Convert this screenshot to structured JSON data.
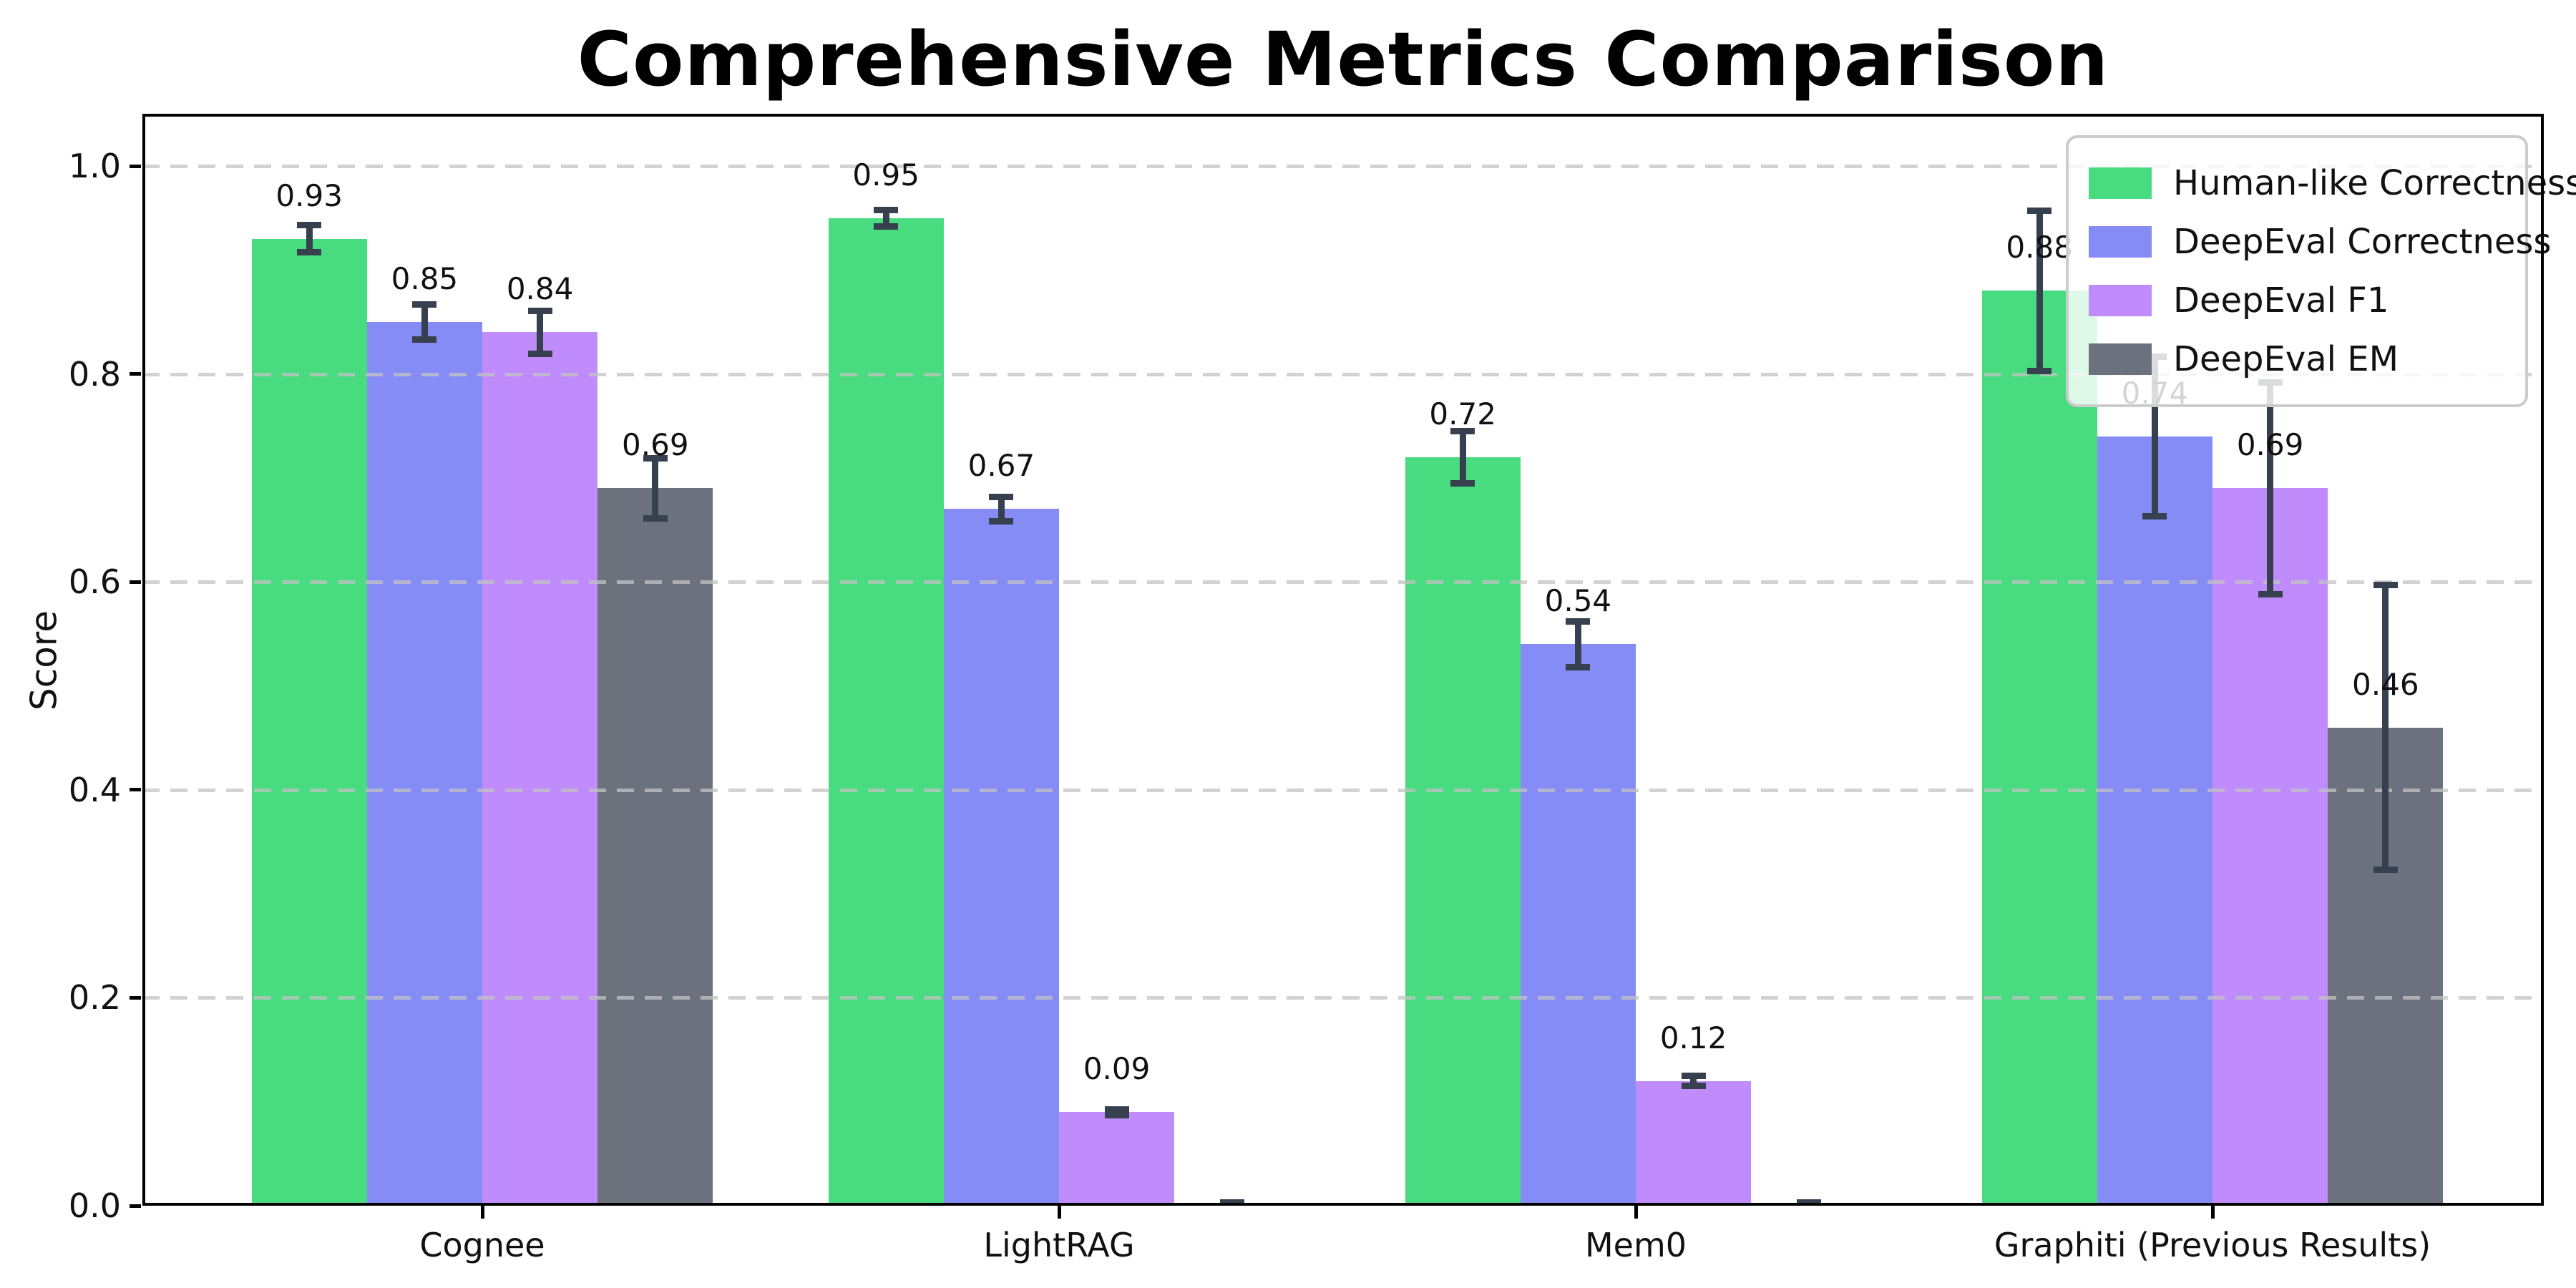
{
  "chart_data": {
    "type": "bar",
    "title": "Comprehensive Metrics Comparison",
    "xlabel": "",
    "ylabel": "Score",
    "categories": [
      "Cognee",
      "LightRAG",
      "Mem0",
      "Graphiti (Previous Results)"
    ],
    "series": [
      {
        "name": "Human-like Correctness",
        "color": "#49db80",
        "values": [
          0.93,
          0.95,
          0.72,
          0.88
        ],
        "errors": [
          0.016,
          0.011,
          0.028,
          0.08
        ],
        "value_labels": [
          "0.93",
          "0.95",
          "0.72",
          "0.88"
        ]
      },
      {
        "name": "DeepEval Correctness",
        "color": "#858cf6",
        "values": [
          0.85,
          0.67,
          0.54,
          0.74
        ],
        "errors": [
          0.02,
          0.015,
          0.025,
          0.08
        ],
        "value_labels": [
          "0.85",
          "0.67",
          "0.54",
          "0.74"
        ]
      },
      {
        "name": "DeepEval F1",
        "color": "#c08bfa",
        "values": [
          0.84,
          0.09,
          0.12,
          0.69
        ],
        "errors": [
          0.024,
          0.006,
          0.008,
          0.105
        ],
        "value_labels": [
          "0.84",
          "0.09",
          "0.12",
          "0.69"
        ]
      },
      {
        "name": "DeepEval EM",
        "color": "#6b727e",
        "values": [
          0.69,
          0.0,
          0.0,
          0.46
        ],
        "errors": [
          0.032,
          0.003,
          0.002,
          0.14
        ],
        "value_labels": [
          "0.69",
          "",
          "",
          "0.46"
        ]
      }
    ],
    "yticks": [
      "0.0",
      "0.2",
      "0.4",
      "0.6",
      "0.8",
      "1.0"
    ],
    "ylim": [
      0.0,
      1.05
    ],
    "grid": {
      "axis": "y",
      "style": "dashed",
      "color": "#c3c3c3"
    },
    "legend_position": "upper right",
    "errorbar_color": "#36404f",
    "spine_color": "#000000"
  }
}
